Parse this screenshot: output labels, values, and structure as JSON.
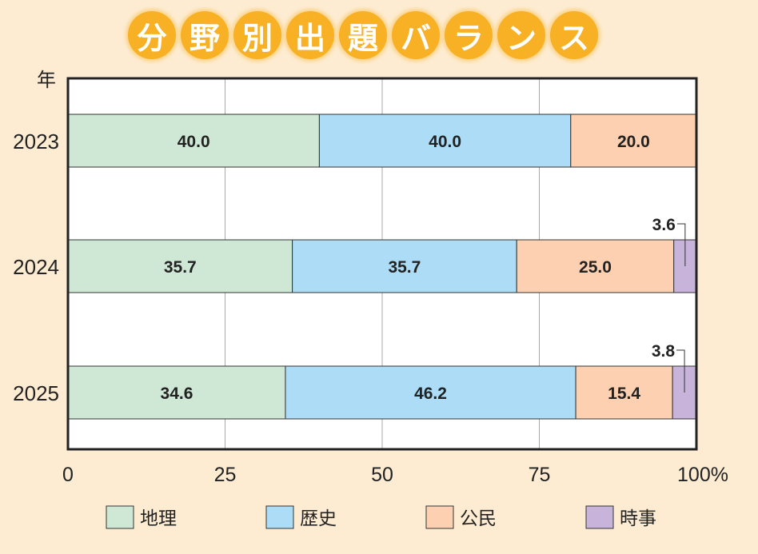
{
  "chart_data": {
    "type": "bar",
    "orientation": "horizontal-stacked-percent",
    "title": "分野別出題バランス",
    "ylabel": "年",
    "categories": [
      "2023",
      "2024",
      "2025"
    ],
    "series": [
      {
        "name": "地理",
        "values": [
          40.0,
          35.7,
          34.6
        ],
        "color": "#cfe8d6"
      },
      {
        "name": "歴史",
        "values": [
          40.0,
          35.7,
          46.2
        ],
        "color": "#acdcf6"
      },
      {
        "name": "公民",
        "values": [
          20.0,
          25.0,
          15.4
        ],
        "color": "#fcd0b0"
      },
      {
        "name": "時事",
        "values": [
          0,
          3.6,
          3.8
        ],
        "color": "#c8b3da"
      }
    ],
    "xlim": [
      0,
      100
    ],
    "xticks": [
      "0",
      "25",
      "50",
      "75",
      "100%"
    ],
    "xtick_values": [
      0,
      25,
      50,
      75,
      100
    ],
    "grid": true,
    "legend": "bottom"
  }
}
